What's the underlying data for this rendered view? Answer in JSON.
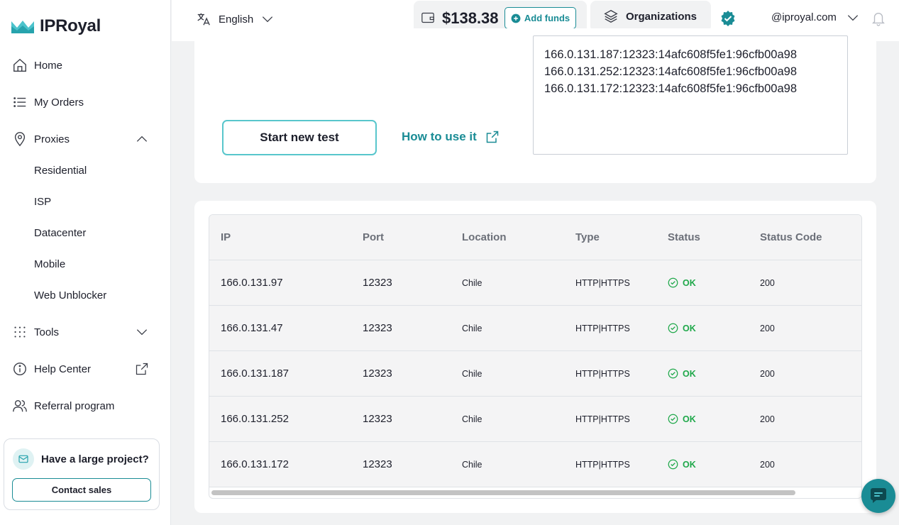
{
  "brand": {
    "name": "IPRoyal",
    "accent": "#1a8c95"
  },
  "sidebar": {
    "items": [
      {
        "label": "Home",
        "icon": "home-icon"
      },
      {
        "label": "My Orders",
        "icon": "list-icon"
      },
      {
        "label": "Proxies",
        "icon": "location-pin-icon",
        "expanded": true
      },
      {
        "label": "Tools",
        "icon": "grid-dots-icon",
        "expanded": false
      },
      {
        "label": "Help Center",
        "icon": "info-icon"
      },
      {
        "label": "Referral program",
        "icon": "users-icon"
      }
    ],
    "proxy_subitems": [
      "Residential",
      "ISP",
      "Datacenter",
      "Mobile",
      "Web Unblocker"
    ],
    "promo": {
      "title": "Have a large project?",
      "button": "Contact sales"
    }
  },
  "topbar": {
    "language": "English",
    "balance": "$138.38",
    "add_funds": "Add funds",
    "organizations": "Organizations",
    "email": "@iproyal.com"
  },
  "tester": {
    "start_button": "Start new test",
    "how_to": "How to use it",
    "proxy_lines": [
      "166.0.131.187:12323:14afc608f5fe1:96cfb00a98",
      "166.0.131.252:12323:14afc608f5fe1:96cfb00a98",
      "166.0.131.172:12323:14afc608f5fe1:96cfb00a98"
    ]
  },
  "table": {
    "headers": [
      "IP",
      "Port",
      "Location",
      "Type",
      "Status",
      "Status Code"
    ],
    "rows": [
      {
        "ip": "166.0.131.97",
        "port": "12323",
        "location": "Chile",
        "type": "HTTP|HTTPS",
        "status": "OK",
        "code": "200"
      },
      {
        "ip": "166.0.131.47",
        "port": "12323",
        "location": "Chile",
        "type": "HTTP|HTTPS",
        "status": "OK",
        "code": "200"
      },
      {
        "ip": "166.0.131.187",
        "port": "12323",
        "location": "Chile",
        "type": "HTTP|HTTPS",
        "status": "OK",
        "code": "200"
      },
      {
        "ip": "166.0.131.252",
        "port": "12323",
        "location": "Chile",
        "type": "HTTP|HTTPS",
        "status": "OK",
        "code": "200"
      },
      {
        "ip": "166.0.131.172",
        "port": "12323",
        "location": "Chile",
        "type": "HTTP|HTTPS",
        "status": "OK",
        "code": "200"
      }
    ]
  }
}
